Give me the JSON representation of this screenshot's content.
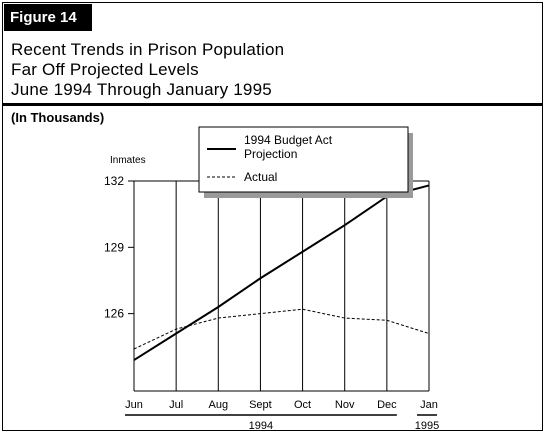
{
  "figure_label": "Figure 14",
  "title_lines": [
    "Recent Trends in Prison Population",
    "Far Off Projected Levels",
    "June 1994 Through January 1995"
  ],
  "units_note": "(In Thousands)",
  "chart_data": {
    "type": "line",
    "ylabel": "Inmates",
    "ylim": [
      122.5,
      132
    ],
    "yticks": [
      132,
      129,
      126
    ],
    "categories": [
      "Jun",
      "Jul",
      "Aug",
      "Sept",
      "Oct",
      "Nov",
      "Dec",
      "Jan"
    ],
    "year_groups": [
      {
        "label": "1994",
        "categories": [
          "Jun",
          "Jul",
          "Aug",
          "Sept",
          "Oct",
          "Nov",
          "Dec"
        ]
      },
      {
        "label": "1995",
        "categories": [
          "Jan"
        ]
      }
    ],
    "series": [
      {
        "name": "1994 Budget Act Projection",
        "style": "solid",
        "values": [
          123.9,
          125.1,
          126.3,
          127.6,
          128.8,
          130.0,
          131.3,
          131.8
        ]
      },
      {
        "name": "Actual",
        "style": "dashed",
        "values": [
          124.4,
          125.3,
          125.8,
          126.0,
          126.2,
          125.8,
          125.7,
          125.1
        ]
      }
    ],
    "grid": "vertical-lines-at-months",
    "legend_position": "top-center"
  }
}
